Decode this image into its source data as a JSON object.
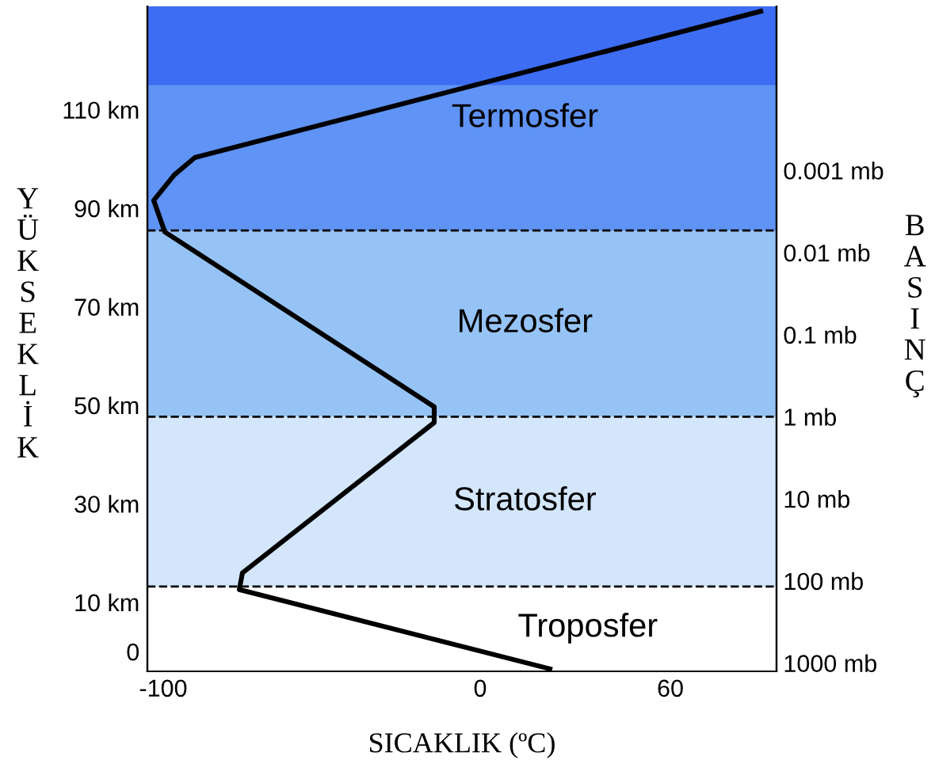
{
  "chart_data": {
    "type": "line",
    "xlabel": "SICAKLIK (ºC)",
    "ylabel": "YÜKSEKLİK",
    "y2label": "BASINÇ",
    "x": [
      22,
      -76,
      -75,
      -14.5,
      -14.5,
      -99.5,
      -103,
      -96.5,
      -90,
      88.5
    ],
    "series": [
      {
        "color": "#000000",
        "values": [
          -3.5,
          12.6,
          16,
          46.5,
          49.7,
          85.2,
          91.6,
          96.8,
          100.3,
          130
        ]
      }
    ],
    "xlim": [
      -105,
      93.5
    ],
    "xticks": [
      -100,
      0,
      60
    ],
    "ylim": [
      -4,
      131
    ],
    "yticks": [
      {
        "value": 0,
        "label": "0"
      },
      {
        "value": 10,
        "label": "10 km"
      },
      {
        "value": 30,
        "label": "30 km"
      },
      {
        "value": 50,
        "label": "50 km"
      },
      {
        "value": 70,
        "label": "70 km"
      },
      {
        "value": 90,
        "label": "90 km"
      },
      {
        "value": 110,
        "label": "110 km"
      }
    ],
    "log": "y2",
    "y2lim": [
      1260,
      1e-05
    ],
    "y2ticks": [
      {
        "value": 1000,
        "label": "1000 mb"
      },
      {
        "value": 100,
        "label": "100 mb"
      },
      {
        "value": 10,
        "label": "10 mb"
      },
      {
        "value": 1,
        "label": "1 mb"
      },
      {
        "value": 0.1,
        "label": "0.1 mb"
      },
      {
        "value": 0.01,
        "label": "0.01 mb"
      },
      {
        "value": 0.001,
        "label": "0.001 mb"
      }
    ],
    "annotations": [
      "Troposfer"
    ],
    "bands": [
      {
        "axis": "y",
        "from": 13.2,
        "to": 47.7,
        "label": "Stratosfer",
        "color": "#d3e6fb"
      },
      {
        "axis": "y",
        "from": 47.7,
        "to": 85.5,
        "label": "Mezosfer",
        "color": "#96c3f5"
      },
      {
        "axis": "y",
        "from": 85.5,
        "to": 131,
        "label": "Termosfer",
        "color": "#5f93f5"
      },
      {
        "axis": "y",
        "from": 115,
        "to": 131,
        "color": "#3d6df3"
      }
    ],
    "ref_lines": [
      {
        "axis": "y",
        "value": 13.2,
        "color": "#000000",
        "line_style": "dashed"
      },
      {
        "axis": "y",
        "value": 47.7,
        "color": "#000000",
        "line_style": "dashed"
      },
      {
        "axis": "y",
        "value": 85.5,
        "color": "#000000",
        "line_style": "dashed"
      }
    ],
    "grid": false,
    "marker": "none",
    "line_style": "solid"
  }
}
